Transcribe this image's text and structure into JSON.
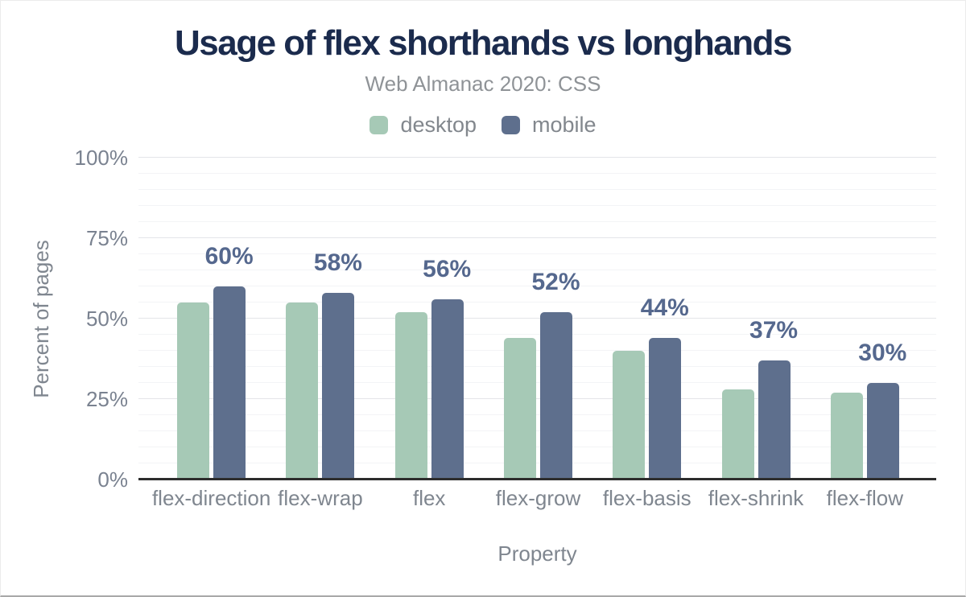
{
  "header": {
    "title": "Usage of flex shorthands vs longhands",
    "subtitle": "Web Almanac 2020: CSS"
  },
  "chart_data": {
    "type": "bar",
    "title": "Usage of flex shorthands vs longhands",
    "subtitle": "Web Almanac 2020: CSS",
    "categories": [
      "flex-direction",
      "flex-wrap",
      "flex",
      "flex-grow",
      "flex-basis",
      "flex-shrink",
      "flex-flow"
    ],
    "series": [
      {
        "name": "desktop",
        "color": "#a6c9b6",
        "values": [
          55,
          55,
          52,
          44,
          40,
          28,
          27
        ]
      },
      {
        "name": "mobile",
        "color": "#5e6f8d",
        "values": [
          60,
          58,
          56,
          52,
          44,
          37,
          30
        ]
      }
    ],
    "bar_labels": {
      "series": "mobile",
      "values": [
        "60%",
        "58%",
        "56%",
        "52%",
        "44%",
        "37%",
        "30%"
      ]
    },
    "xlabel": "Property",
    "ylabel": "Percent of pages",
    "ylim": [
      0,
      100
    ],
    "yticks": [
      {
        "value": 0,
        "label": "0%"
      },
      {
        "value": 25,
        "label": "25%"
      },
      {
        "value": 50,
        "label": "50%"
      },
      {
        "value": 75,
        "label": "75%"
      },
      {
        "value": 100,
        "label": "100%"
      }
    ],
    "grid": {
      "on": true,
      "minor_step": 5,
      "major_step": 25
    },
    "legend_position": "top"
  },
  "colors": {
    "title": "#1b2b4d",
    "subtitle": "#8f9397",
    "axis_text": "#7a8290",
    "axis_title": "#7f868f",
    "bar_label": "#55688e",
    "grid_minor": "#f3f4f6",
    "grid_major": "#e4e5e9",
    "baseline": "#2d2d2d",
    "desktop": "#a6c9b6",
    "mobile": "#5e6f8d"
  }
}
